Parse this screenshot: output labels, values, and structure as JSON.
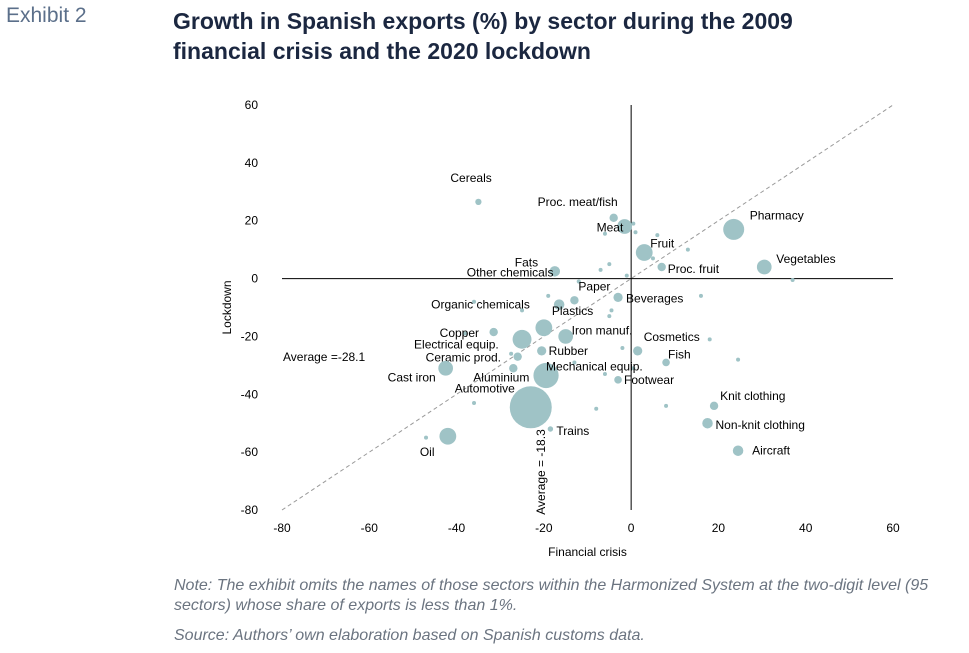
{
  "header": {
    "exhibit": "Exhibit 2",
    "title_line1": "Growth in Spanish exports (%) by sector during the 2009",
    "title_line2": "financial crisis and the 2020 lockdown"
  },
  "notes": {
    "note": "Note: The exhibit omits the names of those sectors within the Harmonized System at the two-digit level (95 sectors) whose share of exports is less than 1%.",
    "source": "Source: Authors’ own elaboration based on Spanish customs data."
  },
  "colors": {
    "bubble": "#9fc3c6",
    "axis": "#000000",
    "diagonal": "#9a9a9a",
    "text": "#000000"
  },
  "chart_data": {
    "type": "scatter",
    "title": "Growth in Spanish exports (%) by sector during the 2009 financial crisis and the 2020 lockdown",
    "xlabel": "Financial crisis",
    "ylabel": "Lockdown",
    "xlim": [
      -80,
      60
    ],
    "ylim": [
      -80,
      60
    ],
    "xticks": [
      "-80",
      "-60",
      "-40",
      "-20",
      "0",
      "20",
      "40",
      "60"
    ],
    "yticks": [
      "60",
      "40",
      "20",
      "0",
      "-20",
      "-40",
      "-60",
      "-80"
    ],
    "grid": false,
    "diagonal": "45-degree dashed line",
    "average_x_label": "Average = -18.3",
    "average_y_label": "Average =-28.1",
    "points": [
      {
        "label": "Cereals",
        "x": -35,
        "y": 26.5,
        "r": 1.5
      },
      {
        "label": "Proc. meat/fish",
        "x": -4,
        "y": 21,
        "r": 2
      },
      {
        "label": "Meat",
        "x": -1.5,
        "y": 18,
        "r": 3.5
      },
      {
        "label": "Pharmacy",
        "x": 23.5,
        "y": 17,
        "r": 5
      },
      {
        "label": "Fruit",
        "x": 3,
        "y": 9,
        "r": 4
      },
      {
        "label": "Fats",
        "x": -17.5,
        "y": 2.5,
        "r": 2.5
      },
      {
        "label": "Proc. fruit",
        "x": 7,
        "y": 4,
        "r": 2
      },
      {
        "label": "Vegetables",
        "x": 30.5,
        "y": 4,
        "r": 3.5
      },
      {
        "label": "Other chemicals",
        "x": -12,
        "y": -1,
        "r": 1
      },
      {
        "label": "Paper",
        "x": -13,
        "y": -7.5,
        "r": 2
      },
      {
        "label": "Beverages",
        "x": -3,
        "y": -6.5,
        "r": 2.2
      },
      {
        "label": "Organic chemicals",
        "x": -16.5,
        "y": -9,
        "r": 2.5
      },
      {
        "label": "Plastics",
        "x": -20,
        "y": -17,
        "r": 4
      },
      {
        "label": "Copper",
        "x": -31.5,
        "y": -18.5,
        "r": 2
      },
      {
        "label": "Iron manuf.",
        "x": -15,
        "y": -20,
        "r": 3.5
      },
      {
        "label": "Electrical equip.",
        "x": -25,
        "y": -21,
        "r": 4.5
      },
      {
        "label": "Cosmetics",
        "x": 1.5,
        "y": -25,
        "r": 2.2
      },
      {
        "label": "Rubber",
        "x": -20.5,
        "y": -25,
        "r": 2.2
      },
      {
        "label": "Ceramic prod.",
        "x": -26,
        "y": -27,
        "r": 2
      },
      {
        "label": "Fish",
        "x": 8,
        "y": -29,
        "r": 1.8
      },
      {
        "label": "Mechanical equip.",
        "x": -19.5,
        "y": -33.5,
        "r": 6
      },
      {
        "label": "Cast iron",
        "x": -42.5,
        "y": -31,
        "r": 3.5
      },
      {
        "label": "Aluminium",
        "x": -27,
        "y": -31,
        "r": 2
      },
      {
        "label": "Footwear",
        "x": -3,
        "y": -35,
        "r": 1.8
      },
      {
        "label": "Knit clothing",
        "x": 19,
        "y": -44,
        "r": 2
      },
      {
        "label": "Automotive",
        "x": -23,
        "y": -44.5,
        "r": 10
      },
      {
        "label": "Non-knit clothing",
        "x": 17.5,
        "y": -50,
        "r": 2.5
      },
      {
        "label": "Trains",
        "x": -18.5,
        "y": -52,
        "r": 1.3
      },
      {
        "label": "Oil",
        "x": -42,
        "y": -54.5,
        "r": 4
      },
      {
        "label": "Aircraft",
        "x": 24.5,
        "y": -59.5,
        "r": 2.5
      }
    ],
    "unlabeled_points": [
      {
        "x": 0.5,
        "y": 19
      },
      {
        "x": 1,
        "y": 16
      },
      {
        "x": 6,
        "y": 15
      },
      {
        "x": -6,
        "y": 15.5
      },
      {
        "x": 5,
        "y": 7
      },
      {
        "x": 13,
        "y": 10
      },
      {
        "x": -5,
        "y": 5
      },
      {
        "x": -7,
        "y": 3
      },
      {
        "x": 37,
        "y": -0.5
      },
      {
        "x": -1,
        "y": 1
      },
      {
        "x": 16,
        "y": -6
      },
      {
        "x": -4.5,
        "y": -11
      },
      {
        "x": -5,
        "y": -13
      },
      {
        "x": -36,
        "y": -8
      },
      {
        "x": -25,
        "y": -11
      },
      {
        "x": -38,
        "y": -19
      },
      {
        "x": -27.5,
        "y": -26
      },
      {
        "x": -13,
        "y": -29
      },
      {
        "x": -6,
        "y": -33
      },
      {
        "x": 0.5,
        "y": -31
      },
      {
        "x": -8,
        "y": -45
      },
      {
        "x": -36,
        "y": -43
      },
      {
        "x": -47,
        "y": -55
      },
      {
        "x": 8,
        "y": -44
      },
      {
        "x": 24.5,
        "y": -28
      },
      {
        "x": 18,
        "y": -21
      },
      {
        "x": -2,
        "y": -24
      },
      {
        "x": -19,
        "y": -6
      }
    ]
  }
}
